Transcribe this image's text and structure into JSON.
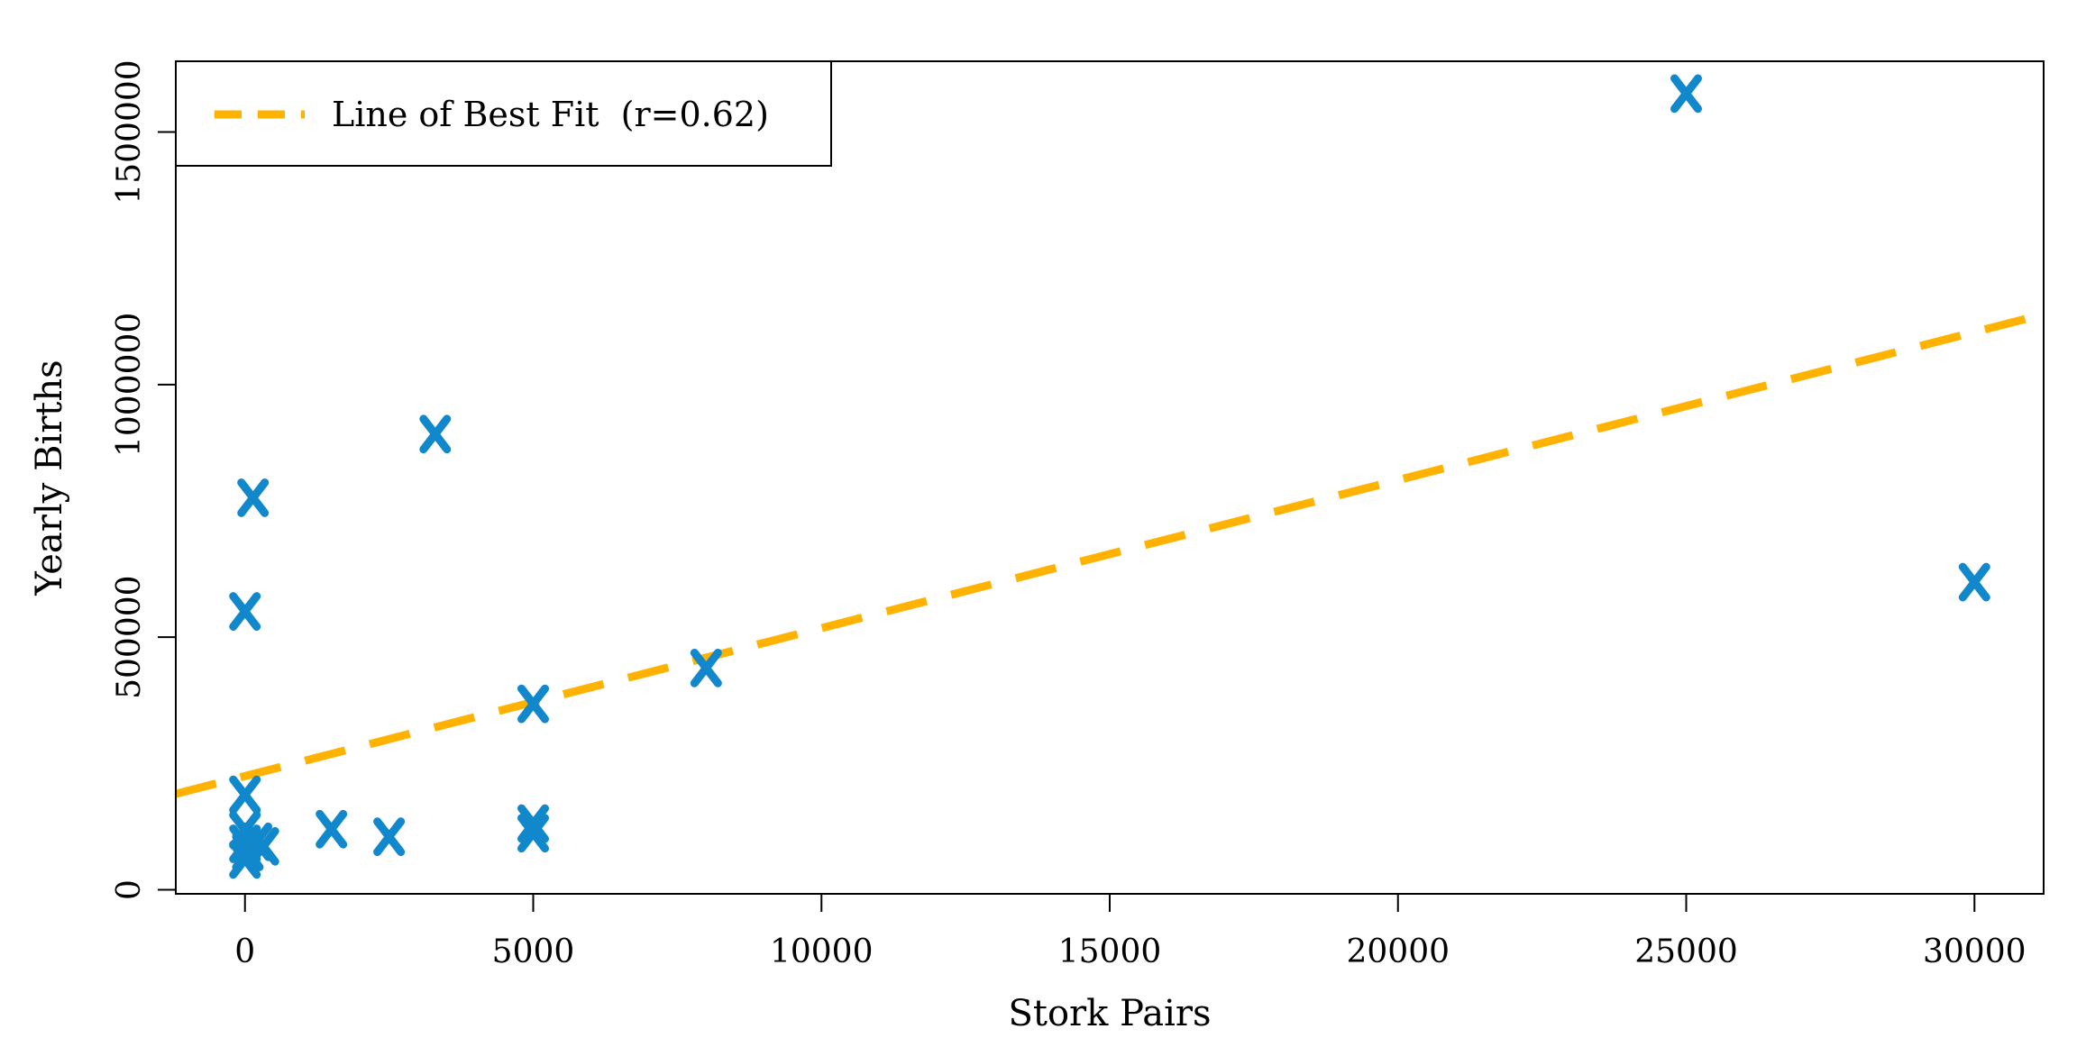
{
  "chart_data": {
    "type": "scatter",
    "title": "",
    "xlabel": "Stork Pairs",
    "ylabel": "Yearly Births",
    "xlim": [
      -1200,
      31200
    ],
    "ylim": [
      -8000,
      1640000
    ],
    "xticks": [
      0,
      5000,
      10000,
      15000,
      20000,
      25000,
      30000
    ],
    "yticks": [
      0,
      500000,
      1000000,
      1500000
    ],
    "xtick_labels": [
      "0",
      "5000",
      "10000",
      "15000",
      "20000",
      "25000",
      "30000"
    ],
    "ytick_labels": [
      "0",
      "500000",
      "1000000",
      "1500000"
    ],
    "grid": false,
    "legend": {
      "position": "top-left",
      "entries": [
        "Line of Best Fit  (r=0.62)"
      ]
    },
    "colors": {
      "points": "#1188cc",
      "fit": "#ffb300"
    },
    "series": [
      {
        "name": "points",
        "marker": "x",
        "x": [
          25000,
          30000,
          3300,
          140,
          0,
          5000,
          8000,
          0,
          0,
          0,
          0,
          320,
          1500,
          2500,
          5000,
          5000,
          50,
          200
        ],
        "y": [
          1576000,
          609000,
          902000,
          776000,
          551000,
          368000,
          439000,
          188000,
          118000,
          60000,
          91000,
          86000,
          120000,
          105000,
          131000,
          112000,
          75000,
          95000
        ]
      },
      {
        "name": "Line of Best Fit  (r=0.62)",
        "type": "line",
        "style": "dashed",
        "intercept": 225000,
        "slope": 29.3
      }
    ]
  }
}
